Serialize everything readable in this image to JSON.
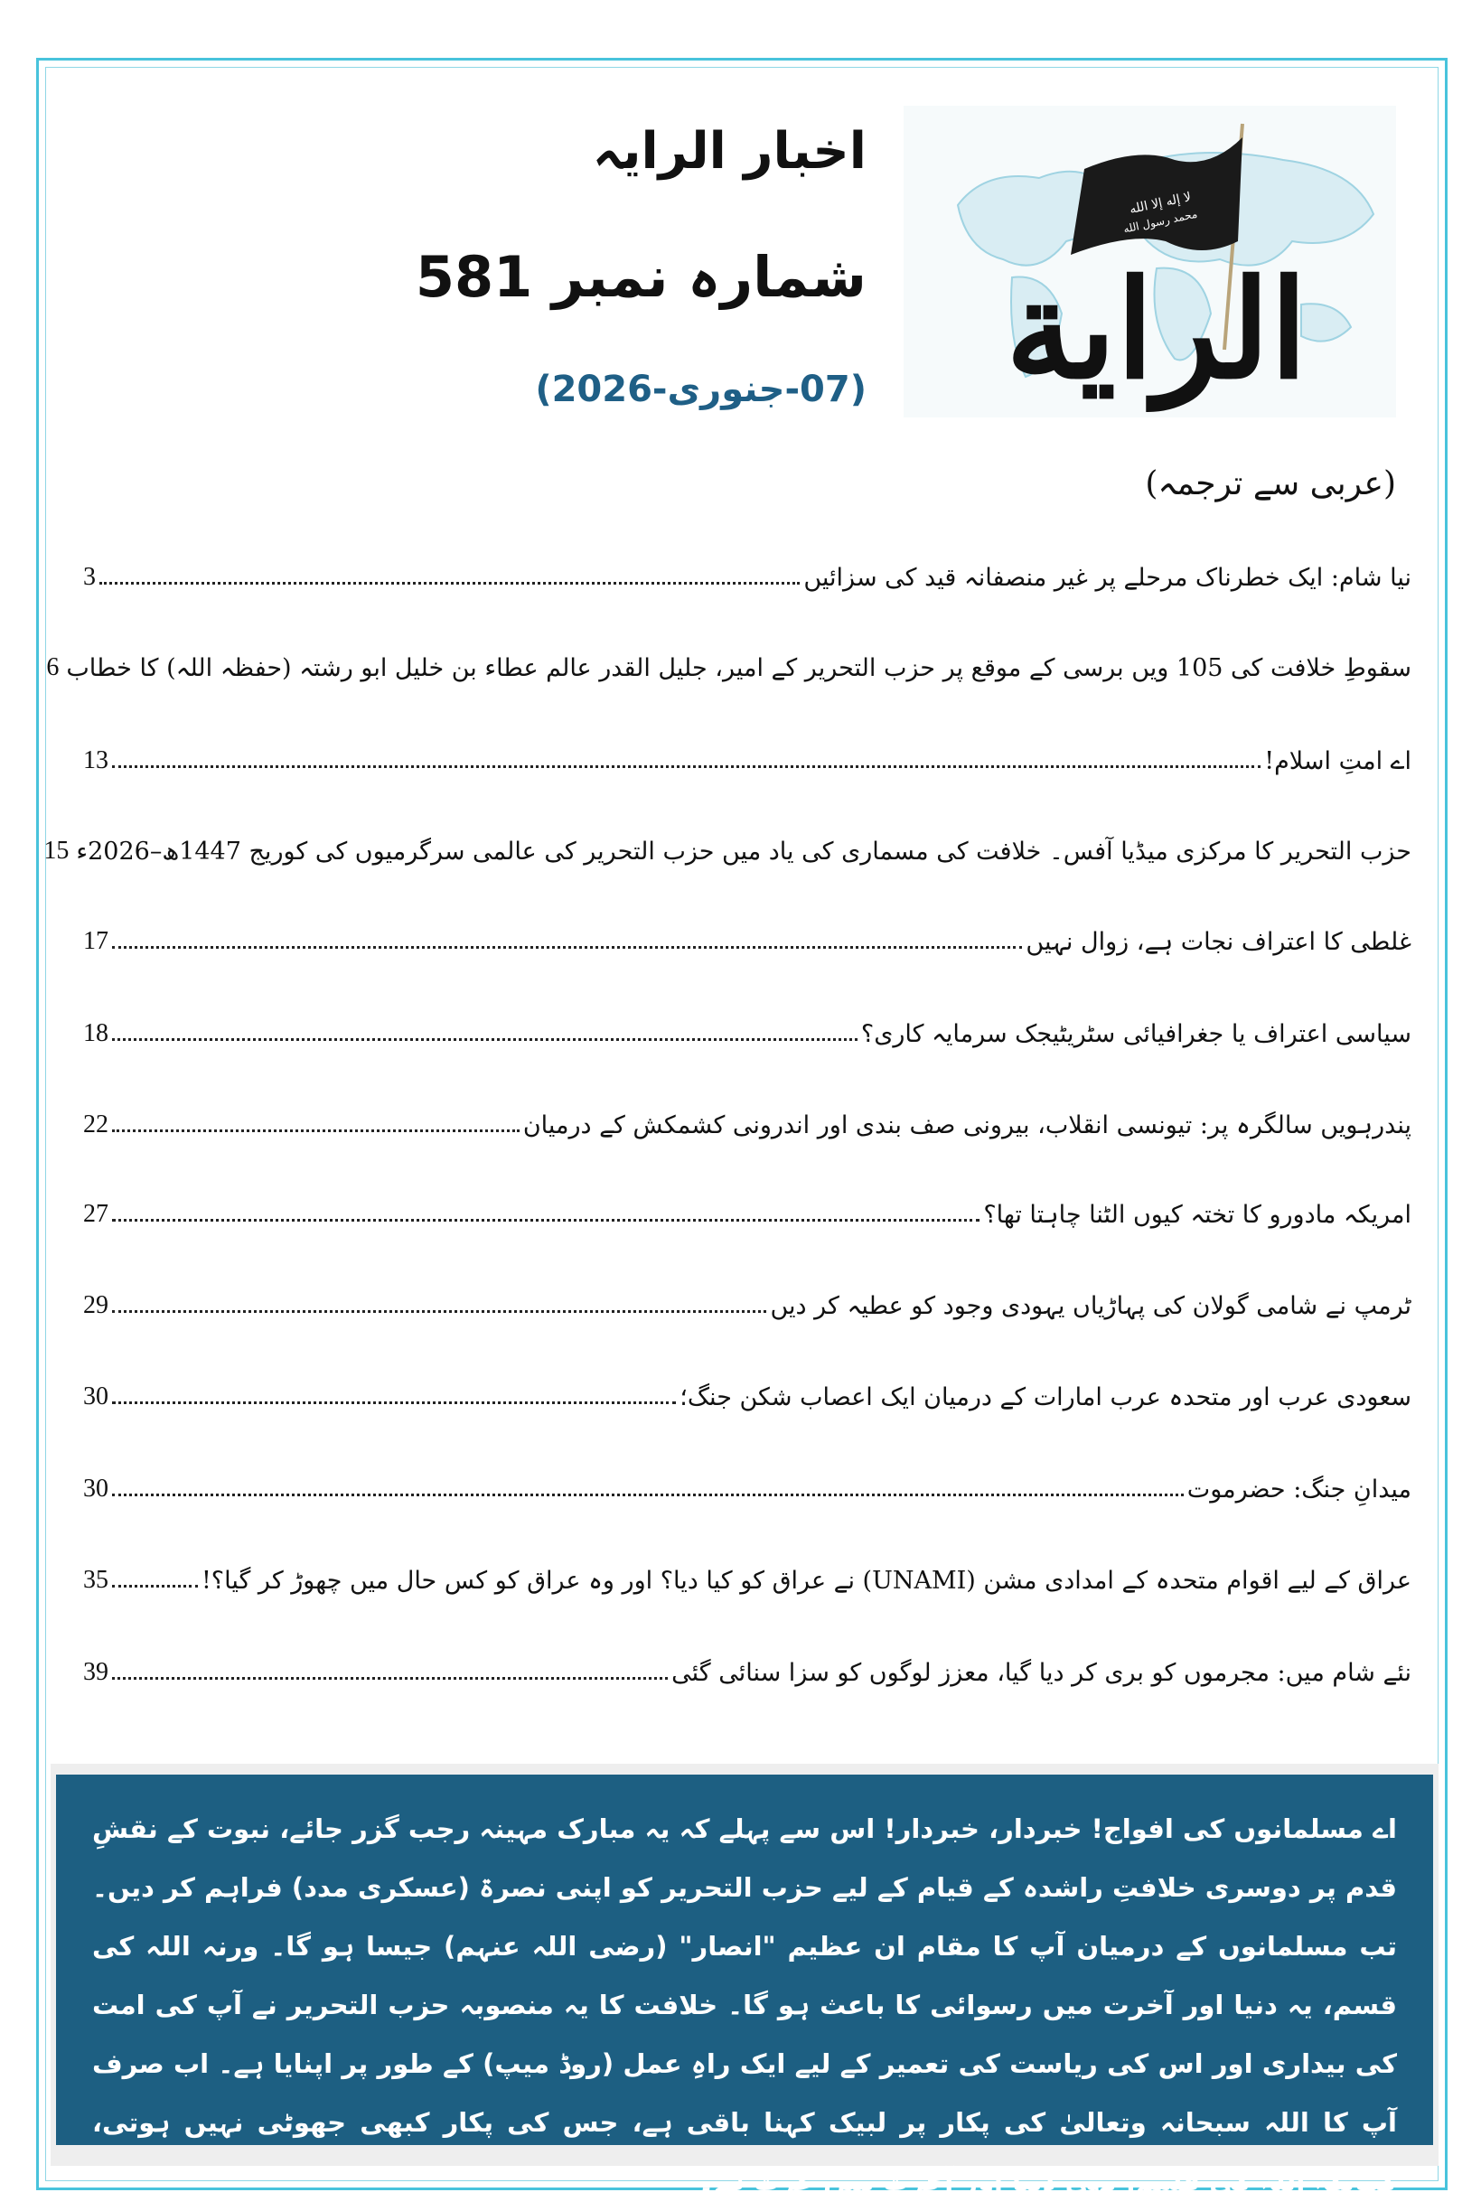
{
  "header": {
    "title": "اخبار الرایہ",
    "issue": "شمارہ نمبر 581",
    "date": "(07-جنوری-2026)",
    "translated_from": "(عربی سے ترجمہ)"
  },
  "logo": {
    "wordmark": "الرَّايَة",
    "flag_text": "لا إله إلا الله محمد رسول الله"
  },
  "toc": [
    {
      "title": "نیا شام: ایک خطرناک مرحلے پر غیر منصفانہ قید کی سزائیں",
      "page": "3"
    },
    {
      "title": "سقوطِ خلافت کی 105 ویں برسی کے موقع پر حزب التحریر کے امیر، جلیل القدر عالم عطاء بن خلیل ابو رشتہ (حفظہ اللہ) کا خطاب",
      "page": "6"
    },
    {
      "title": "اے امتِ اسلام!",
      "page": "13"
    },
    {
      "title": "حزب التحریر کا مرکزی میڈیا آفس۔ خلافت کی مسماری کی یاد میں حزب التحریر کی عالمی سرگرمیوں کی کوریج 1447ھ–2026ء",
      "page": "15"
    },
    {
      "title": "غلطی کا اعتراف نجات ہے، زوال نہیں",
      "page": "17"
    },
    {
      "title": "سیاسی اعتراف یا جغرافیائی سٹریٹیجک سرمایہ کاری؟",
      "page": "18"
    },
    {
      "title": "پندرہویں سالگرہ پر: تیونسی انقلاب، بیرونی صف بندی اور اندرونی کشمکش کے درمیان",
      "page": "22"
    },
    {
      "title": "امریکہ مادورو کا تختہ کیوں الٹنا چاہتا تھا؟",
      "page": "27"
    },
    {
      "title": "ٹرمپ نے شامی گولان کی پہاڑیاں یہودی وجود کو عطیہ کر دیں",
      "page": "29"
    },
    {
      "title": "سعودی عرب اور متحدہ عرب امارات کے درمیان ایک اعصاب شکن جنگ؛",
      "page": "30"
    },
    {
      "title": "میدانِ جنگ: حضرموت",
      "page": "30"
    },
    {
      "title": "عراق کے لیے اقوام متحدہ کے امدادی مشن (UNAMI) نے عراق کو کیا دیا؟ اور وہ عراق کو کس حال میں چھوڑ کر گیا؟!",
      "page": "35"
    },
    {
      "title": "نئے شام میں: مجرموں کو بری کر دیا گیا، معزز لوگوں کو سزا سنائی گئی",
      "page": "39"
    }
  ],
  "callout": {
    "text": "اے مسلمانوں کی افواج! خبردار، خبردار! اس سے پہلے کہ یہ مبارک مہینہ رجب گزر جائے، نبوت کے نقشِ قدم پر دوسری خلافتِ راشدہ کے قیام کے لیے حزب التحریر کو اپنی نصرۃ (عسکری مدد) فراہم کر دیں۔ تب مسلمانوں کے درمیان آپ کا مقام ان عظیم \"انصار\" (رضی اللہ عنہم) جیسا ہو گا۔ ورنہ اللہ کی قسم، یہ دنیا اور آخرت میں رسوائی کا باعث ہو گا۔ خلافت کا یہ منصوبہ حزب التحریر نے آپ کی امت کی بیداری اور اس کی ریاست کی تعمیر کے لیے ایک راہِ عمل (روڈ میپ) کے طور پر اپنایا ہے۔ اب صرف آپ کا اللہ سبحانہ وتعالیٰ کی پکار پر لبیک کہنا باقی ہے، جس کی پکار کبھی جھوٹی نہیں ہوتی، کیونکہ اللہ کی قسم، یہی دنیا اور آخرت میں عزت ہے۔",
    "background": "#1d5f82"
  },
  "colors": {
    "frame": "#48c3dc",
    "date": "#1f5f86"
  }
}
